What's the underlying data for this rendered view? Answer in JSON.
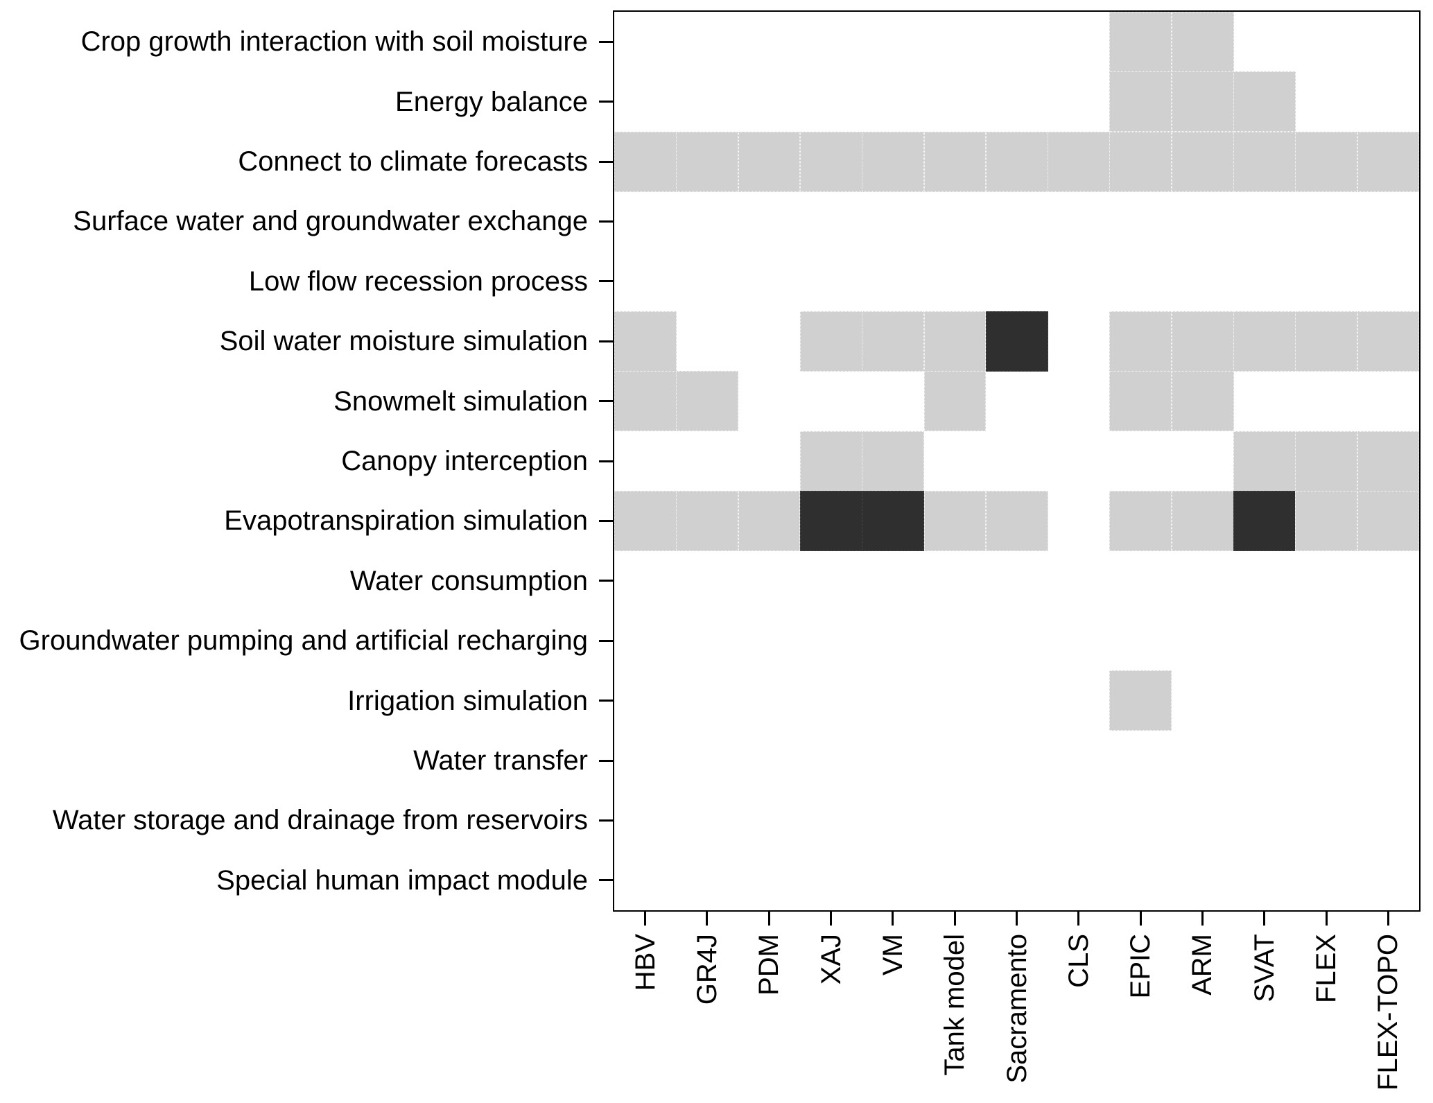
{
  "figure": {
    "background_color": "#ffffff",
    "text_color": "#000000",
    "axis_color": "#000000"
  },
  "chart_data": {
    "type": "heatmap",
    "title": "",
    "xlabel": "",
    "ylabel": "",
    "grid": false,
    "legend_position": "none",
    "columns": [
      "HBV",
      "GR4J",
      "PDM",
      "XAJ",
      "VM",
      "Tank model",
      "Sacramento",
      "CLS",
      "EPIC",
      "ARM",
      "SVAT",
      "FLEX",
      "FLEX-TOPO"
    ],
    "rows": [
      "Crop growth interaction with soil moisture",
      "Energy balance",
      "Connect to climate forecasts",
      "Surface water and groundwater exchange",
      "Low flow recession process",
      "Soil water moisture simulation",
      "Snowmelt simulation",
      "Canopy interception",
      "Evapotranspiration simulation",
      "Water consumption",
      "Groundwater pumping and artificial recharging",
      "Irrigation simulation",
      "Water transfer",
      "Water storage and drainage from reservoirs",
      "Special human impact module"
    ],
    "matrix": [
      [
        0,
        0,
        0,
        0,
        0,
        0,
        0,
        0,
        1,
        1,
        0,
        0,
        0
      ],
      [
        0,
        0,
        0,
        0,
        0,
        0,
        0,
        0,
        1,
        1,
        1,
        0,
        0
      ],
      [
        1,
        1,
        1,
        1,
        1,
        1,
        1,
        1,
        1,
        1,
        1,
        1,
        1
      ],
      [
        0,
        0,
        0,
        0,
        0,
        0,
        0,
        0,
        0,
        0,
        0,
        0,
        0
      ],
      [
        0,
        0,
        0,
        0,
        0,
        0,
        0,
        0,
        0,
        0,
        0,
        0,
        0
      ],
      [
        1,
        0,
        0,
        1,
        1,
        1,
        2,
        0,
        1,
        1,
        1,
        1,
        1
      ],
      [
        1,
        1,
        0,
        0,
        0,
        1,
        0,
        0,
        1,
        1,
        0,
        0,
        0
      ],
      [
        0,
        0,
        0,
        1,
        1,
        0,
        0,
        0,
        0,
        0,
        1,
        1,
        1
      ],
      [
        1,
        1,
        1,
        2,
        2,
        1,
        1,
        0,
        1,
        1,
        2,
        1,
        1
      ],
      [
        0,
        0,
        0,
        0,
        0,
        0,
        0,
        0,
        0,
        0,
        0,
        0,
        0
      ],
      [
        0,
        0,
        0,
        0,
        0,
        0,
        0,
        0,
        0,
        0,
        0,
        0,
        0
      ],
      [
        0,
        0,
        0,
        0,
        0,
        0,
        0,
        0,
        1,
        0,
        0,
        0,
        0
      ],
      [
        0,
        0,
        0,
        0,
        0,
        0,
        0,
        0,
        0,
        0,
        0,
        0,
        0
      ],
      [
        0,
        0,
        0,
        0,
        0,
        0,
        0,
        0,
        0,
        0,
        0,
        0,
        0
      ],
      [
        0,
        0,
        0,
        0,
        0,
        0,
        0,
        0,
        0,
        0,
        0,
        0,
        0
      ]
    ],
    "value_colors": {
      "0": "#ffffff",
      "1": "#d0d0d0",
      "2": "#2f2f2f"
    }
  }
}
